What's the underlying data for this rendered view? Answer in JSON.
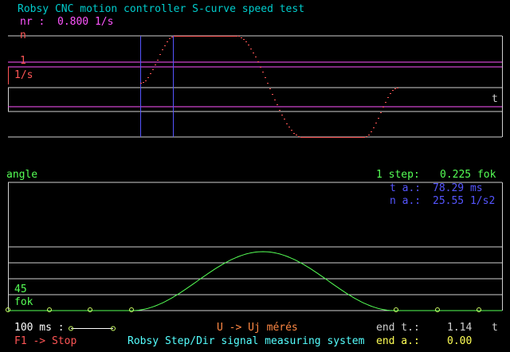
{
  "header": {
    "title": "Robsy CNC motion controller S-curve speed test",
    "nr_label": "nr :",
    "nr_value": "0.800 1/s"
  },
  "speed_plot": {
    "n_label": "n",
    "one_label": "1",
    "unit_label": "1/s",
    "t_label": "t"
  },
  "angle_plot": {
    "angle_label": "angle",
    "step_label": "1 step:",
    "step_value": "0.225 fok",
    "ta_label": "t a.:",
    "ta_value": "78.29 ms",
    "na_label": "n a.:",
    "na_value": "25.55 1/s2",
    "deg_label": "45",
    "fok_label": "fok"
  },
  "footer": {
    "ms_label": "100 ms :",
    "mode_hint": "U -> Uj mérés",
    "stop_hint": "F1 -> Stop",
    "system_name": "Robsy Step/Dir signal measuring system",
    "end_t_label": "end t.:",
    "end_t_value": "1.14",
    "end_t_unit": "t",
    "end_a_label": "end a.:",
    "end_a_value": "0.00"
  },
  "colors": {
    "title": "#00cccc",
    "magenta": "#ff55ff",
    "red": "#ff5555",
    "green": "#55ff55",
    "blue": "#5555ff",
    "gray": "#d0d0d0",
    "white": "#ffffff",
    "yellow": "#ffff55",
    "orange": "#ff8844",
    "ltcyan": "#55ffff",
    "marker": "#ccff66"
  }
}
